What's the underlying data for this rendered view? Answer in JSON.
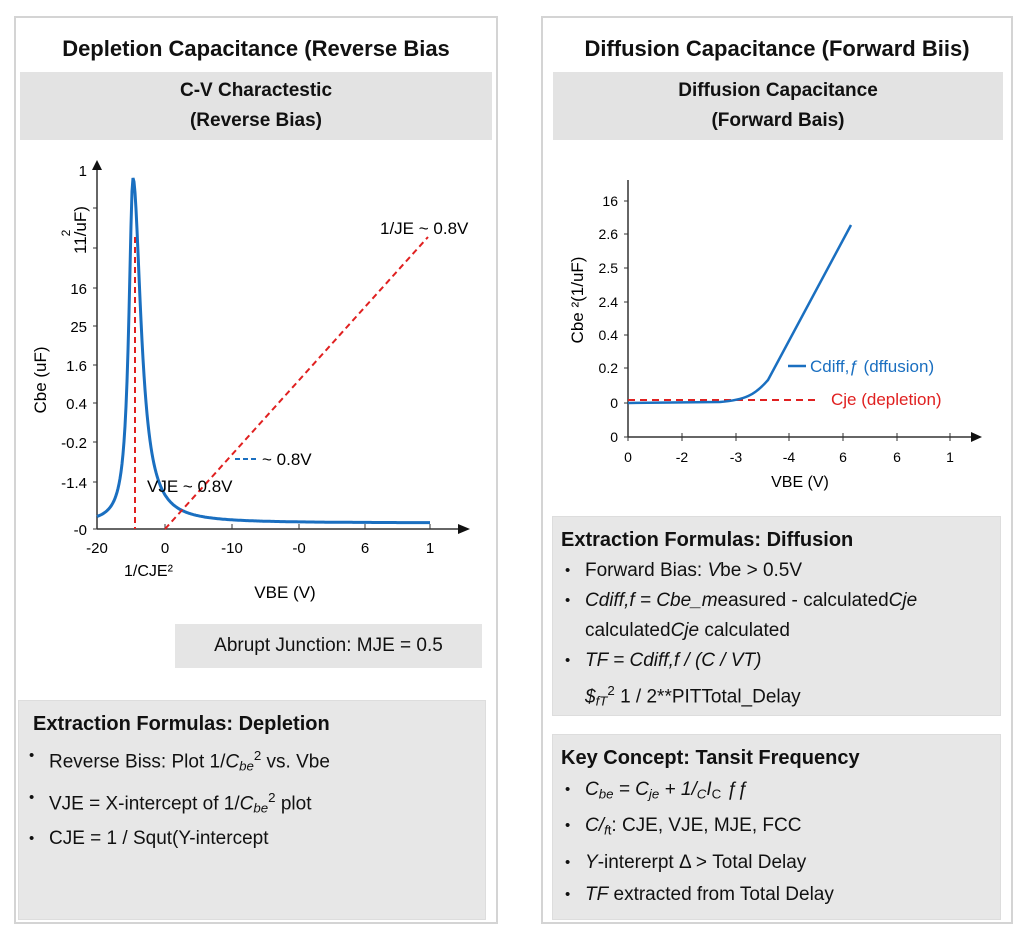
{
  "left": {
    "title": "Depletion Capacitance (Reverse Bias",
    "header": [
      "C-V Charactestic",
      "(Reverse Bias)"
    ],
    "note": "Abrupt Junction: MJE = 0.5",
    "formulas": {
      "title": "Extraction Formulas: Depletion",
      "items": [
        [
          [
            "Reverse Biss: Plot 1/",
            ""
          ],
          [
            "C",
            "i"
          ],
          [
            "be",
            "i sub"
          ],
          [
            "2",
            "sup"
          ],
          [
            " vs. Vbe",
            ""
          ]
        ],
        [
          [
            "VJE = X-intercept of 1/",
            ""
          ],
          [
            "C",
            "i"
          ],
          [
            "be",
            "i sub"
          ],
          [
            "2",
            "sup"
          ],
          [
            " plot",
            ""
          ]
        ],
        [
          [
            "CJE = 1 / Squt(Y-intercept",
            ""
          ]
        ]
      ]
    }
  },
  "right": {
    "title": "Diffusion Capacitance (Forward Biis)",
    "header": [
      "Diffusion Capacitance",
      "(Forward Bais)"
    ],
    "formulas": {
      "title": "Extraction Formulas: Diffusion",
      "items": [
        [
          [
            "Forward Bias: ",
            ""
          ],
          [
            "V",
            "i"
          ],
          [
            "be",
            ""
          ],
          [
            " > 0.5V",
            ""
          ]
        ],
        [
          [
            "Cdiff,f = Cbe_m",
            "i"
          ],
          [
            "easured - calculated",
            ""
          ],
          [
            "Cje",
            "i"
          ]
        ],
        [
          [
            "calculated",
            ""
          ],
          [
            "Cje",
            "i"
          ],
          [
            " calculated",
            ""
          ]
        ],
        [
          [
            "TF = Cdiff,f / (C / VT)",
            "i"
          ]
        ],
        [
          [
            "$",
            "i"
          ],
          [
            "f",
            "i sub"
          ],
          [
            "T",
            "i sub"
          ],
          [
            "2",
            "sup"
          ],
          [
            " 1 / 2**PITTotal_Delay",
            ""
          ]
        ]
      ]
    },
    "concept": {
      "title": "Key Concept: Tansit Frequency",
      "items": [
        [
          [
            "C",
            "i"
          ],
          [
            "be",
            "i sub"
          ],
          [
            " = C",
            "i"
          ],
          [
            "je",
            "i sub"
          ],
          [
            " + 1/",
            "i"
          ],
          [
            "C",
            "i sub"
          ],
          [
            "I",
            "i"
          ],
          [
            "C",
            "sub"
          ],
          [
            " ƒƒ",
            "i"
          ]
        ],
        [
          [
            "C/",
            "i"
          ],
          [
            "f",
            "i sub"
          ],
          [
            "t",
            "sub"
          ],
          [
            ": CJE, VJE, MJE, FCC",
            ""
          ]
        ],
        [
          [
            "Y",
            "i"
          ],
          [
            "-intererpt ",
            ""
          ],
          [
            "Δ",
            ""
          ],
          [
            " > Total Delay",
            ""
          ]
        ],
        [
          [
            "TF",
            "i"
          ],
          [
            " extracted from Total Delay",
            ""
          ]
        ]
      ]
    }
  },
  "chart_data": [
    {
      "type": "line",
      "ylabel": "Cbe  (uF)",
      "ylabel2": "11/uF)",
      "ylabel2_sup": "2",
      "xlabel": "VBE (V)",
      "yticks": [
        "1",
        "",
        "",
        "16",
        "25",
        "1.6",
        "0.4",
        "-0.2",
        "-1.4",
        "-0"
      ],
      "xticks": [
        "-20",
        "0",
        "-10",
        "-0",
        "6",
        "1"
      ],
      "annotations": {
        "line_label": "1/JE ~ 0.8V",
        "dash_label": "~ 0.8V",
        "vje_label": "VJE ~ 0.8V",
        "intercept_label": "1/CJE²"
      },
      "series_colors": {
        "curve": "#1a6fc0",
        "fit": "#e02020"
      }
    },
    {
      "type": "line",
      "ylabel": "Cbe ²(1/uF)",
      "xlabel": "VBE (V)",
      "yticks": [
        "16",
        "2.6",
        "2.5",
        "2.4",
        "0.4",
        "0.2",
        "0",
        "0"
      ],
      "xticks": [
        "0",
        "-2",
        "-3",
        "-4",
        "6",
        "6",
        "1"
      ],
      "legend": [
        {
          "name": "Cdiff,ƒ (dffusion)",
          "color": "#1a6fc0",
          "style": "solid"
        },
        {
          "name": "Cje (depletion)",
          "color": "#e02020",
          "style": "dashed"
        }
      ]
    }
  ]
}
